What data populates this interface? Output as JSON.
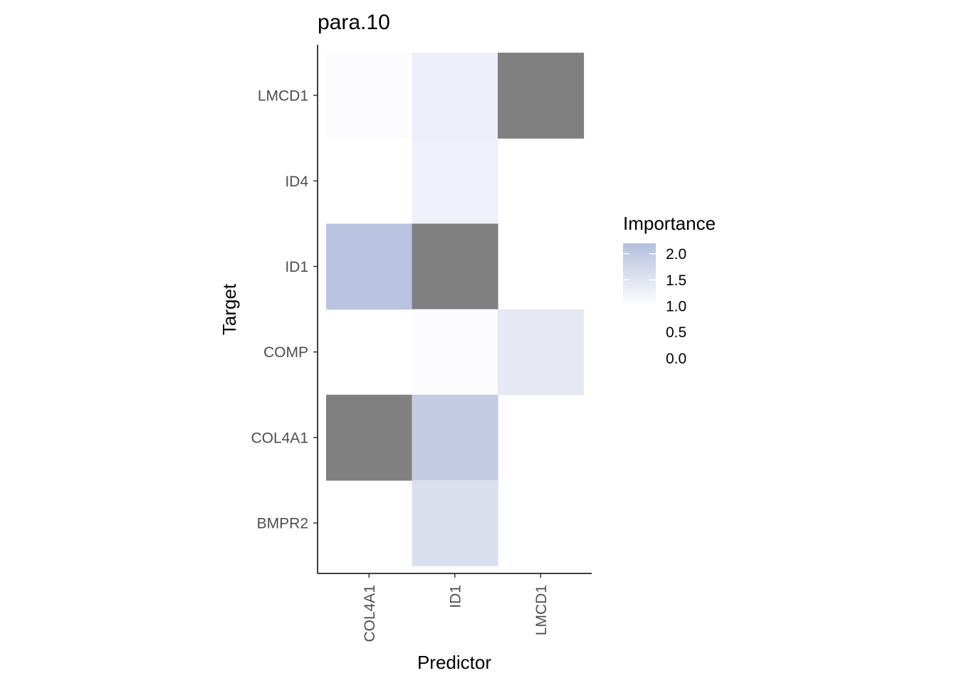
{
  "chart_data": {
    "type": "heatmap",
    "title": "para.10",
    "xlabel": "Predictor",
    "ylabel": "Target",
    "x_categories": [
      "COL4A1",
      "ID1",
      "LMCD1"
    ],
    "y_categories": [
      "BMPR2",
      "COL4A1",
      "COMP",
      "ID1",
      "ID4",
      "LMCD1"
    ],
    "cells": [
      {
        "x": "COL4A1",
        "y": "LMCD1",
        "value": 1.05
      },
      {
        "x": "ID1",
        "y": "LMCD1",
        "value": 1.3
      },
      {
        "x": "LMCD1",
        "y": "LMCD1",
        "value": null
      },
      {
        "x": "ID1",
        "y": "ID4",
        "value": 1.25
      },
      {
        "x": "COL4A1",
        "y": "ID1",
        "value": 2.1
      },
      {
        "x": "ID1",
        "y": "ID1",
        "value": null
      },
      {
        "x": "ID1",
        "y": "COMP",
        "value": 1.05
      },
      {
        "x": "LMCD1",
        "y": "COMP",
        "value": 1.4
      },
      {
        "x": "COL4A1",
        "y": "COL4A1",
        "value": null
      },
      {
        "x": "ID1",
        "y": "COL4A1",
        "value": 1.95
      },
      {
        "x": "ID1",
        "y": "BMPR2",
        "value": 1.6
      }
    ],
    "legend": {
      "title": "Importance",
      "labels": [
        "2.0",
        "1.5",
        "1.0",
        "0.5",
        "0.0"
      ],
      "range": [
        1.0,
        2.2
      ],
      "color_low": "#ffffff",
      "color_high": "#b4bedd",
      "na_color": "#808080",
      "placement": "right"
    },
    "grid": false
  }
}
